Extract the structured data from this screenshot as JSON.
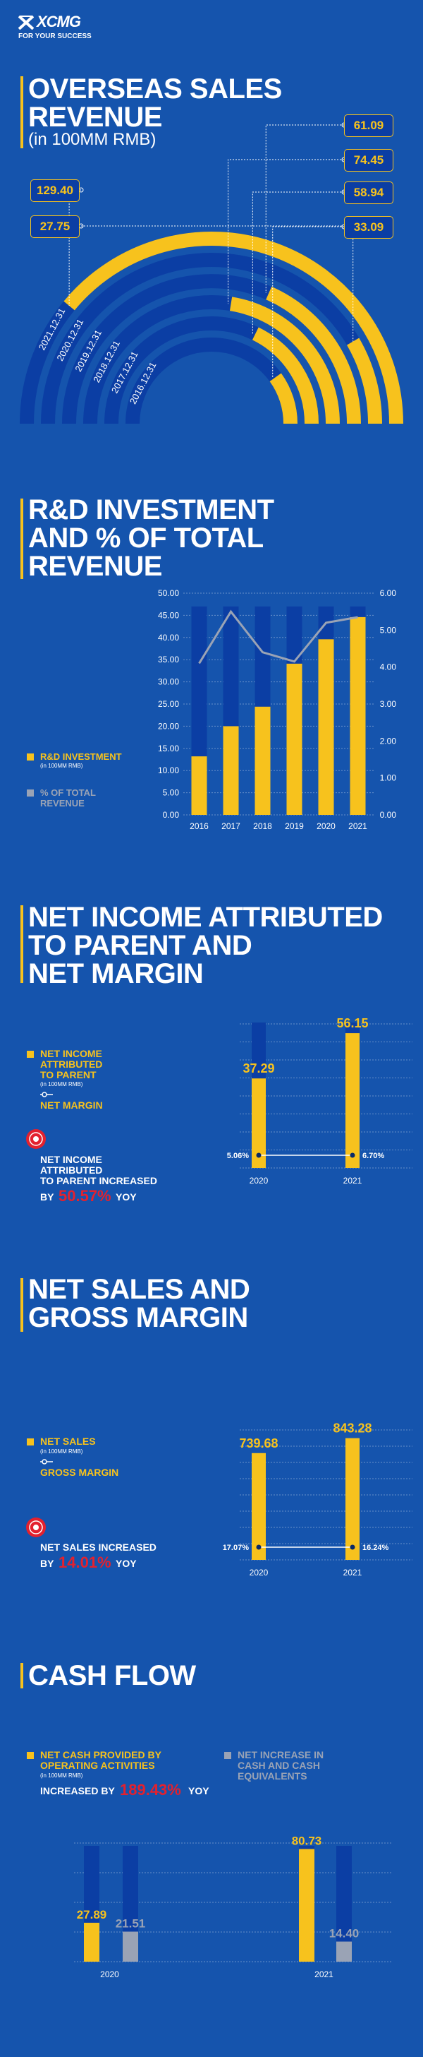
{
  "brand": {
    "logo_text": "XCMG",
    "tagline": "FOR YOUR SUCCESS",
    "icon": "xcmg-logo-icon"
  },
  "colors": {
    "background": "#1554ad",
    "accent": "#f7c21d",
    "dark_blue": "#0b3ea4",
    "gray": "#9aa3b5",
    "red": "#e3212e"
  },
  "sections": {
    "sales": {
      "title": "OVERSEAS SALES\nREVENUE",
      "subtitle": "(in 100MM RMB)"
    },
    "rd": {
      "title": "R&D INVESTMENT\nAND % OF TOTAL\nREVENUE"
    },
    "net_income": {
      "title": "NET INCOME ATTRIBUTED\nTO PARENT AND\nNET MARGIN"
    },
    "net_sales": {
      "title": "NET SALES AND\nGROSS MARGIN"
    },
    "cash_flow": {
      "title": "CASH FLOW"
    }
  },
  "legends": {
    "rd_investment": "R&D INVESTMENT",
    "rd_unit": "(in 100MM RMB)",
    "rd_pct": "% OF TOTAL\nREVENUE",
    "ni_main": "NET INCOME\nATTRIBUTED\nTO PARENT",
    "ni_unit": "(in 100MM RMB)",
    "ni_margin": "NET MARGIN",
    "ni_increase": "NET INCOME\nATTRIBUTED\nTO PARENT INCREASED",
    "ni_by": "BY",
    "ni_pct": "50.57%",
    "ni_yoy": "YOY",
    "ns_main": "NET SALES",
    "ns_unit": "(in 100MM RMB)",
    "ns_margin": "GROSS MARGIN",
    "ns_increase": "NET SALES INCREASED",
    "ns_by": "BY",
    "ns_pct": "14.01%",
    "ns_yoy": "YOY",
    "cf_main": "NET CASH PROVIDED BY\nOPERATING ACTIVITIES",
    "cf_unit": "(in 100MM RMB)",
    "cf_increased": "INCREASED BY",
    "cf_pct": "189.43%",
    "cf_yoy": "YOY",
    "cf_gray": "NET INCREASE IN\nCASH AND CASH\nEQUIVALENTS"
  },
  "chart_data": [
    {
      "type": "radial-bar",
      "title": "OVERSEAS SALES REVENUE",
      "unit": "(in 100MM RMB)",
      "categories": [
        "2021.12.31",
        "2020.12.31",
        "2019.12.31",
        "2018.12.31",
        "2017.12.31",
        "2016.12.31"
      ],
      "values": [
        129.4,
        27.75,
        61.09,
        74.45,
        58.94,
        33.09
      ],
      "value_labels": [
        "129.40",
        "27.75",
        "61.09",
        "74.45",
        "58.94",
        "33.09"
      ]
    },
    {
      "type": "bar",
      "title": "R&D INVESTMENT AND % OF TOTAL REVENUE",
      "categories": [
        "2016",
        "2017",
        "2018",
        "2019",
        "2020",
        "2021"
      ],
      "series": [
        {
          "name": "R&D INVESTMENT",
          "values": [
            13.2,
            20.0,
            24.4,
            34.1,
            39.6,
            44.6
          ]
        },
        {
          "name": "% OF TOTAL REVENUE",
          "values": [
            4.1,
            5.5,
            4.4,
            4.15,
            5.2,
            5.35
          ]
        }
      ],
      "ylim": [
        0,
        50
      ],
      "y2lim": [
        0,
        6
      ],
      "yticks": [
        "0.00",
        "5.00",
        "10.00",
        "15.00",
        "20.00",
        "25.00",
        "30.00",
        "35.00",
        "40.00",
        "45.00",
        "50.00"
      ],
      "y2ticks": [
        "0.00",
        "1.00",
        "2.00",
        "3.00",
        "4.00",
        "5.00",
        "6.00"
      ]
    },
    {
      "type": "bar",
      "title": "NET INCOME ATTRIBUTED TO PARENT AND NET MARGIN",
      "categories": [
        "2020",
        "2021"
      ],
      "series": [
        {
          "name": "NET INCOME ATTRIBUTED TO PARENT",
          "values": [
            37.29,
            56.15
          ]
        },
        {
          "name": "NET MARGIN",
          "values": [
            5.06,
            6.7
          ]
        }
      ],
      "value_labels": [
        "37.29",
        "56.15"
      ],
      "margin_labels": [
        "5.06%",
        "6.70%"
      ]
    },
    {
      "type": "bar",
      "title": "NET SALES AND GROSS MARGIN",
      "categories": [
        "2020",
        "2021"
      ],
      "series": [
        {
          "name": "NET SALES",
          "values": [
            739.68,
            843.28
          ]
        },
        {
          "name": "GROSS MARGIN",
          "values": [
            17.07,
            16.24
          ]
        }
      ],
      "value_labels": [
        "739.68",
        "843.28"
      ],
      "margin_labels": [
        "17.07%",
        "16.24%"
      ]
    },
    {
      "type": "bar",
      "title": "CASH FLOW",
      "categories": [
        "2020",
        "2021"
      ],
      "series": [
        {
          "name": "NET CASH PROVIDED BY OPERATING ACTIVITIES",
          "values": [
            27.89,
            80.73
          ]
        },
        {
          "name": "NET INCREASE IN CASH AND CASH EQUIVALENTS",
          "values": [
            21.51,
            14.4
          ]
        }
      ],
      "value_labels_a": [
        "27.89",
        "80.73"
      ],
      "value_labels_b": [
        "21.51",
        "14.40"
      ]
    }
  ]
}
